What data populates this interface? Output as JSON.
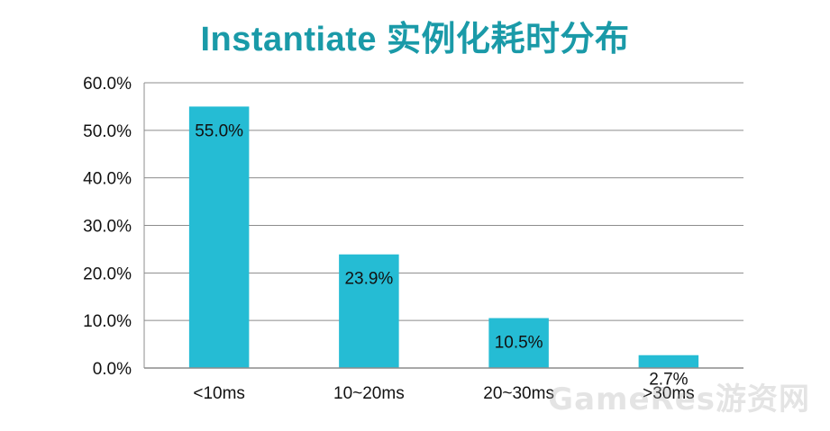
{
  "chart_data": {
    "type": "bar",
    "title": "Instantiate 实例化耗时分布",
    "categories": [
      "<10ms",
      "10~20ms",
      "20~30ms",
      ">30ms"
    ],
    "values": [
      55.0,
      23.9,
      10.5,
      2.7
    ],
    "data_labels": [
      "55.0%",
      "23.9%",
      "10.5%",
      "2.7%"
    ],
    "xlabel": "",
    "ylabel": "",
    "ylim": [
      0,
      60
    ],
    "yticks": [
      0,
      10,
      20,
      30,
      40,
      50,
      60
    ],
    "ytick_labels": [
      "0.0%",
      "10.0%",
      "20.0%",
      "30.0%",
      "40.0%",
      "50.0%",
      "60.0%"
    ],
    "grid": true,
    "legend": "none",
    "bar_color": "#25bcd4",
    "title_color": "#1a9aa8"
  },
  "watermark": "GameRes游资网"
}
